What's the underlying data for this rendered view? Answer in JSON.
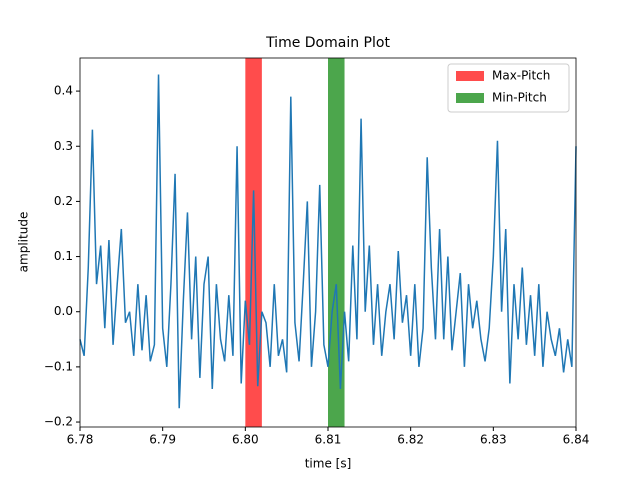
{
  "chart_data": {
    "type": "line",
    "title": "Time Domain Plot",
    "x_label": "time [s]",
    "y_label": "amplitude",
    "x": [
      6.78,
      6.7805,
      6.781,
      6.7815,
      6.782,
      6.7825,
      6.783,
      6.7835,
      6.784,
      6.7845,
      6.785,
      6.7855,
      6.786,
      6.7865,
      6.787,
      6.7875,
      6.788,
      6.7885,
      6.789,
      6.7895,
      6.79,
      6.7905,
      6.791,
      6.7915,
      6.792,
      6.7925,
      6.793,
      6.7935,
      6.794,
      6.7945,
      6.795,
      6.7955,
      6.796,
      6.7965,
      6.797,
      6.7975,
      6.798,
      6.7985,
      6.799,
      6.7995,
      6.8,
      6.8005,
      6.801,
      6.8015,
      6.802,
      6.8025,
      6.803,
      6.8035,
      6.804,
      6.8045,
      6.805,
      6.8055,
      6.806,
      6.8065,
      6.807,
      6.8075,
      6.808,
      6.8085,
      6.809,
      6.8095,
      6.81,
      6.8105,
      6.811,
      6.8115,
      6.812,
      6.8125,
      6.813,
      6.8135,
      6.814,
      6.8145,
      6.815,
      6.8155,
      6.816,
      6.8165,
      6.817,
      6.8175,
      6.818,
      6.8185,
      6.819,
      6.8195,
      6.82,
      6.8205,
      6.821,
      6.8215,
      6.822,
      6.8225,
      6.823,
      6.8235,
      6.824,
      6.8245,
      6.825,
      6.8255,
      6.826,
      6.8265,
      6.827,
      6.8275,
      6.828,
      6.8285,
      6.829,
      6.8295,
      6.83,
      6.8305,
      6.831,
      6.8315,
      6.832,
      6.8325,
      6.833,
      6.8335,
      6.834,
      6.8345,
      6.835,
      6.8355,
      6.836,
      6.8365,
      6.837,
      6.8375,
      6.838,
      6.8385,
      6.839,
      6.8395,
      6.84
    ],
    "series": [
      {
        "color": "#1f77b4",
        "values": [
          -0.05,
          -0.08,
          0.08,
          0.33,
          0.05,
          0.12,
          -0.03,
          0.13,
          -0.06,
          0.05,
          0.15,
          -0.02,
          0.0,
          -0.08,
          0.05,
          -0.07,
          0.03,
          -0.09,
          -0.06,
          0.43,
          -0.03,
          -0.1,
          0.05,
          0.25,
          -0.175,
          0.02,
          0.18,
          -0.05,
          0.1,
          -0.12,
          0.05,
          0.1,
          -0.14,
          0.05,
          -0.05,
          -0.09,
          0.03,
          -0.08,
          0.3,
          -0.13,
          0.02,
          -0.06,
          0.22,
          -0.135,
          0.0,
          -0.02,
          -0.1,
          0.05,
          -0.08,
          -0.05,
          -0.11,
          0.39,
          -0.02,
          -0.09,
          0.05,
          0.2,
          -0.1,
          0.0,
          0.23,
          -0.06,
          -0.1,
          0.0,
          0.05,
          -0.14,
          0.0,
          -0.09,
          0.12,
          -0.05,
          0.35,
          0.0,
          0.12,
          -0.06,
          0.05,
          -0.08,
          0.0,
          0.05,
          -0.05,
          0.11,
          -0.02,
          0.03,
          -0.08,
          0.05,
          -0.1,
          -0.03,
          0.28,
          0.08,
          -0.05,
          0.15,
          -0.05,
          0.1,
          -0.07,
          0.0,
          0.07,
          -0.1,
          0.05,
          -0.03,
          0.02,
          -0.05,
          -0.09,
          -0.03,
          0.1,
          0.31,
          0.0,
          0.15,
          -0.13,
          0.05,
          -0.05,
          0.08,
          -0.06,
          0.03,
          -0.08,
          0.05,
          -0.1,
          0.0,
          -0.05,
          -0.08,
          -0.03,
          -0.11,
          -0.05,
          -0.1,
          0.3
        ]
      }
    ],
    "spans": [
      {
        "name": "Max-Pitch",
        "color": "#ff0000",
        "xlim": [
          6.8,
          6.802
        ]
      },
      {
        "name": "Min-Pitch",
        "color": "#008000",
        "xlim": [
          6.81,
          6.812
        ]
      }
    ],
    "xlim": [
      6.78,
      6.84
    ],
    "ylim": [
      -0.209,
      0.46
    ],
    "xticks": [
      {
        "value": 6.78,
        "label": "6.78"
      },
      {
        "value": 6.79,
        "label": "6.79"
      },
      {
        "value": 6.8,
        "label": "6.80"
      },
      {
        "value": 6.81,
        "label": "6.81"
      },
      {
        "value": 6.82,
        "label": "6.82"
      },
      {
        "value": 6.83,
        "label": "6.83"
      },
      {
        "value": 6.84,
        "label": "6.84"
      }
    ],
    "yticks": [
      {
        "value": -0.2,
        "label": "−0.2"
      },
      {
        "value": -0.1,
        "label": "−0.1"
      },
      {
        "value": 0,
        "label": "0.0"
      },
      0.1,
      0.2,
      0.3,
      0.4
    ],
    "legend": "upper right"
  }
}
